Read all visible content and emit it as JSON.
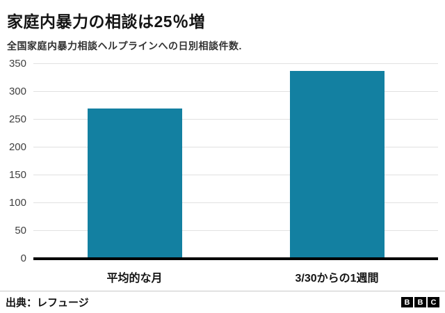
{
  "header": {
    "title": "家庭内暴力の相談は25％増",
    "subtitle": "全国家庭内暴力相談ヘルプラインへの日別相談件数."
  },
  "chart_data": {
    "type": "bar",
    "title": "家庭内暴力の相談は25％増",
    "subtitle": "全国家庭内暴力相談ヘルプラインへの日別相談件数",
    "categories": [
      "平均的な月",
      "3/30からの1週間"
    ],
    "values": [
      270,
      337
    ],
    "xlabel": "",
    "ylabel": "",
    "ylim": [
      0,
      350
    ],
    "yticks": [
      0,
      50,
      100,
      150,
      200,
      250,
      300,
      350
    ],
    "grid": "horizontal",
    "legend": "none",
    "bar_color": "#1380A1",
    "gridline_color": "#e1e1e1",
    "baseline_color": "#000000"
  },
  "footer": {
    "source": "出典：レフュージ",
    "logo_letters": [
      "B",
      "B",
      "C"
    ]
  }
}
